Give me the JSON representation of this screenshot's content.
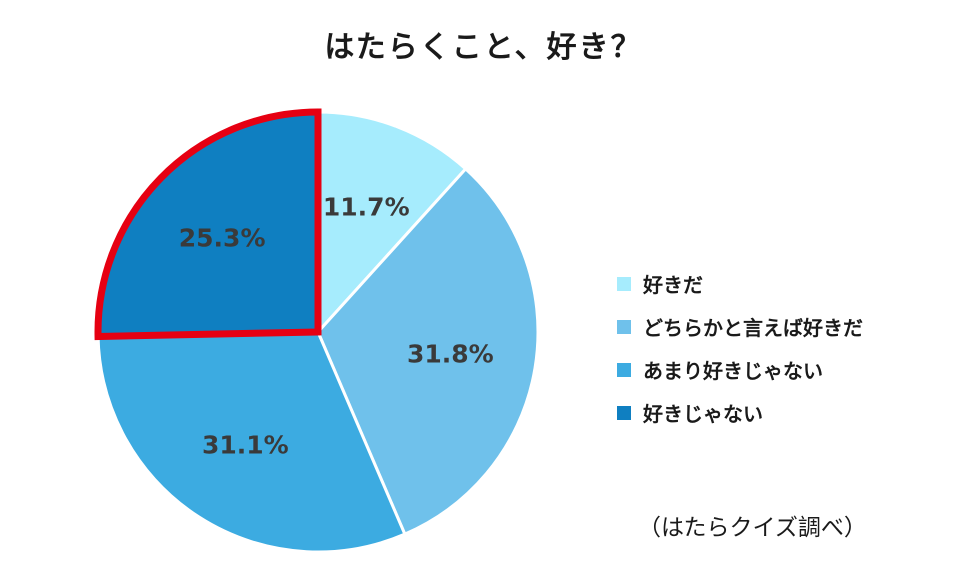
{
  "chart_data": {
    "type": "pie",
    "title": "はたらくこと、好き？",
    "slices": [
      {
        "label": "好きだ",
        "value": 11.7,
        "display": "11.7%",
        "color": "#a6ecfd"
      },
      {
        "label": "どちらかと言えば好きだ",
        "value": 31.8,
        "display": "31.8%",
        "color": "#6fc1eb"
      },
      {
        "label": "あまり好きじゃない",
        "value": 31.1,
        "display": "31.1%",
        "color": "#3cabe1"
      },
      {
        "label": "好きじゃない",
        "value": 25.3,
        "display": "25.3%",
        "color": "#0f7fc1",
        "highlighted": true
      }
    ],
    "start_angle_deg": 0,
    "direction": "clockwise",
    "legend_position": "right",
    "highlight_color": "#e60012"
  },
  "source_note": "（はたらクイズ調べ）"
}
